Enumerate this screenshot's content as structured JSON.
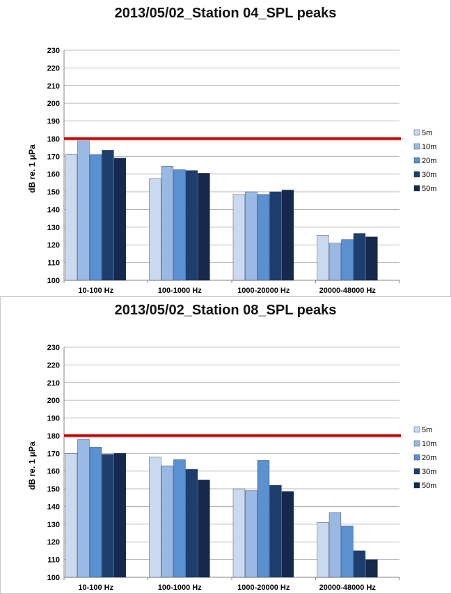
{
  "chart_data": [
    {
      "type": "bar",
      "title": "2013/05/02_Station 04_SPL peaks",
      "ylabel": "dB re. 1 μPa",
      "xlabel": "",
      "ylim": [
        100,
        230
      ],
      "ytick_step": 10,
      "grid": true,
      "legend_position": "right",
      "threshold": 180,
      "threshold_color": "#c00000",
      "categories": [
        "10-100 Hz",
        "100-1000 Hz",
        "1000-20000 Hz",
        "20000-48000 Hz"
      ],
      "series": [
        {
          "name": "5m",
          "color": "#c9daf0",
          "values": [
            171,
            157.5,
            148.5,
            125.5
          ]
        },
        {
          "name": "10m",
          "color": "#99b9e3",
          "values": [
            180,
            164.5,
            150,
            121
          ]
        },
        {
          "name": "20m",
          "color": "#5b90d1",
          "values": [
            171,
            162.5,
            148.5,
            123
          ]
        },
        {
          "name": "30m",
          "color": "#1e3f6e",
          "values": [
            173.5,
            162,
            150,
            126.5
          ]
        },
        {
          "name": "50m",
          "color": "#14294d",
          "values": [
            169,
            160.5,
            151,
            124.5
          ]
        }
      ]
    },
    {
      "type": "bar",
      "title": "2013/05/02_Station 08_SPL peaks",
      "ylabel": "dB re. 1 μPa",
      "xlabel": "",
      "ylim": [
        100,
        230
      ],
      "ytick_step": 10,
      "grid": true,
      "legend_position": "right",
      "threshold": 180,
      "threshold_color": "#c00000",
      "categories": [
        "10-100 Hz",
        "100-1000 Hz",
        "1000-20000 Hz",
        "20000-48000 Hz"
      ],
      "series": [
        {
          "name": "5m",
          "color": "#c9daf0",
          "values": [
            170,
            168,
            150,
            131
          ]
        },
        {
          "name": "10m",
          "color": "#99b9e3",
          "values": [
            178,
            163,
            149,
            136.5
          ]
        },
        {
          "name": "20m",
          "color": "#5b90d1",
          "values": [
            173.5,
            166.5,
            166,
            129
          ]
        },
        {
          "name": "30m",
          "color": "#1e3f6e",
          "values": [
            169.5,
            161,
            152,
            115
          ]
        },
        {
          "name": "50m",
          "color": "#14294d",
          "values": [
            170,
            155,
            148.5,
            110
          ]
        }
      ]
    }
  ]
}
